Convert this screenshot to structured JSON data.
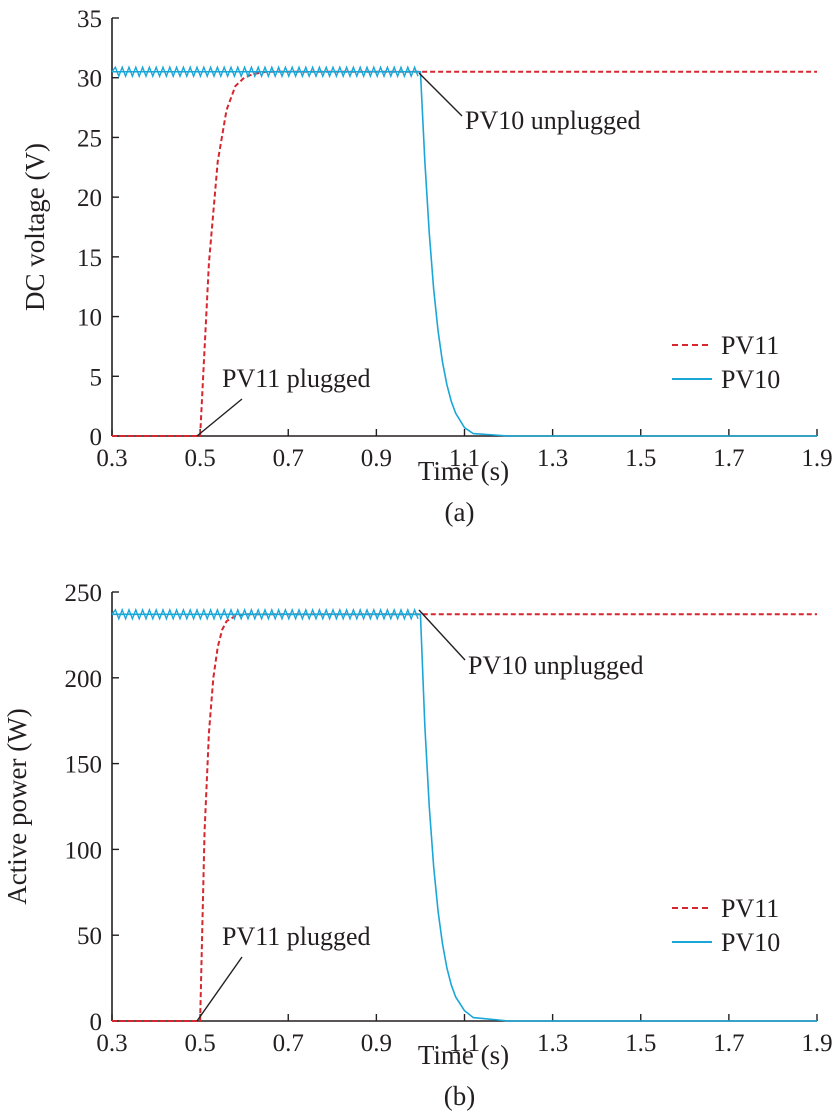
{
  "colors": {
    "pv11": "#d7262e",
    "pv10": "#1aa7d8",
    "axis": "#231f20"
  },
  "chart_data": [
    {
      "type": "line",
      "caption": "(a)",
      "xlabel": "Time (s)",
      "ylabel": "DC voltage (V)",
      "xlim": [
        0.3,
        1.9
      ],
      "ylim": [
        0,
        35
      ],
      "xticks": [
        0.3,
        0.5,
        0.7,
        0.9,
        1.1,
        1.3,
        1.5,
        1.7,
        1.9
      ],
      "xtick_labels": [
        "0.3",
        "0.5",
        "0.7",
        "0.9",
        "1.1",
        "1.3",
        "1.5",
        "1.7",
        "1.9"
      ],
      "yticks": [
        0,
        5,
        10,
        15,
        20,
        25,
        30,
        35
      ],
      "ytick_labels": [
        "0",
        "5",
        "10",
        "15",
        "20",
        "25",
        "30",
        "35"
      ],
      "grid": false,
      "legend_position": "lower-right",
      "series": [
        {
          "name": "PV11",
          "style": "dashed",
          "color_key": "pv11",
          "x": [
            0.3,
            0.5,
            0.52,
            0.54,
            0.56,
            0.58,
            0.6,
            0.62,
            0.65,
            0.7,
            0.8,
            1.0,
            1.2,
            1.4,
            1.6,
            1.8,
            1.9
          ],
          "y": [
            0,
            0,
            14.5,
            23.0,
            27.3,
            29.3,
            30.0,
            30.3,
            30.5,
            30.5,
            30.5,
            30.5,
            30.5,
            30.5,
            30.5,
            30.5,
            30.5
          ]
        },
        {
          "name": "PV10",
          "style": "solid",
          "color_key": "pv10",
          "x": [
            0.3,
            0.5,
            0.7,
            0.9,
            1.0,
            1.01,
            1.02,
            1.03,
            1.04,
            1.05,
            1.06,
            1.07,
            1.08,
            1.1,
            1.12,
            1.2,
            1.4,
            1.6,
            1.8,
            1.9
          ],
          "y": [
            30.5,
            30.5,
            30.5,
            30.5,
            30.5,
            23.0,
            17.0,
            12.3,
            8.8,
            6.2,
            4.3,
            2.9,
            1.9,
            0.7,
            0.2,
            0,
            0,
            0,
            0,
            0
          ]
        }
      ],
      "annotations": [
        {
          "text": "PV10 unplugged",
          "x": 1.0,
          "y": 30.5
        },
        {
          "text": "PV11 plugged",
          "x": 0.5,
          "y": 0
        }
      ]
    },
    {
      "type": "line",
      "caption": "(b)",
      "xlabel": "Time (s)",
      "ylabel": "Active power (W)",
      "xlim": [
        0.3,
        1.9
      ],
      "ylim": [
        0,
        250
      ],
      "xticks": [
        0.3,
        0.5,
        0.7,
        0.9,
        1.1,
        1.3,
        1.5,
        1.7,
        1.9
      ],
      "xtick_labels": [
        "0.3",
        "0.5",
        "0.7",
        "0.9",
        "1.1",
        "1.3",
        "1.5",
        "1.7",
        "1.9"
      ],
      "yticks": [
        0,
        50,
        100,
        150,
        200,
        250
      ],
      "ytick_labels": [
        "0",
        "50",
        "100",
        "150",
        "200",
        "250"
      ],
      "grid": false,
      "legend_position": "lower-right",
      "series": [
        {
          "name": "PV11",
          "style": "dashed",
          "color_key": "pv11",
          "x": [
            0.3,
            0.5,
            0.51,
            0.52,
            0.53,
            0.54,
            0.55,
            0.56,
            0.58,
            0.6,
            0.7,
            0.9,
            1.1,
            1.3,
            1.5,
            1.7,
            1.9
          ],
          "y": [
            0,
            0,
            110,
            168,
            200,
            218,
            228,
            233,
            236,
            237,
            237,
            237,
            237,
            237,
            237,
            237,
            237
          ]
        },
        {
          "name": "PV10",
          "style": "solid",
          "color_key": "pv10",
          "x": [
            0.3,
            0.5,
            0.7,
            0.9,
            1.0,
            1.01,
            1.02,
            1.03,
            1.04,
            1.05,
            1.06,
            1.07,
            1.08,
            1.1,
            1.12,
            1.2,
            1.4,
            1.6,
            1.8,
            1.9
          ],
          "y": [
            237,
            237,
            237,
            237,
            237,
            172,
            125,
            90,
            64,
            45,
            31,
            21,
            14,
            6,
            2,
            0,
            0,
            0,
            0,
            0
          ]
        }
      ],
      "annotations": [
        {
          "text": "PV10 unplugged",
          "x": 1.0,
          "y": 237
        },
        {
          "text": "PV11 plugged",
          "x": 0.5,
          "y": 0
        }
      ]
    }
  ]
}
